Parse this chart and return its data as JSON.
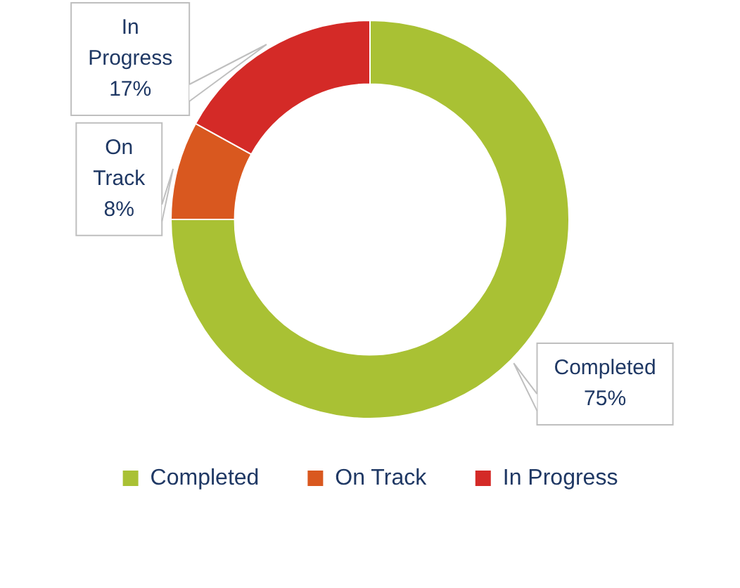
{
  "chart_data": {
    "type": "donut",
    "categories": [
      "Completed",
      "On Track",
      "In Progress"
    ],
    "values": [
      75,
      8,
      17
    ],
    "colors": [
      "#a9c134",
      "#d9581f",
      "#d42a27"
    ],
    "value_labels": [
      "75%",
      "8%",
      "17%"
    ],
    "legend": "bottom"
  }
}
